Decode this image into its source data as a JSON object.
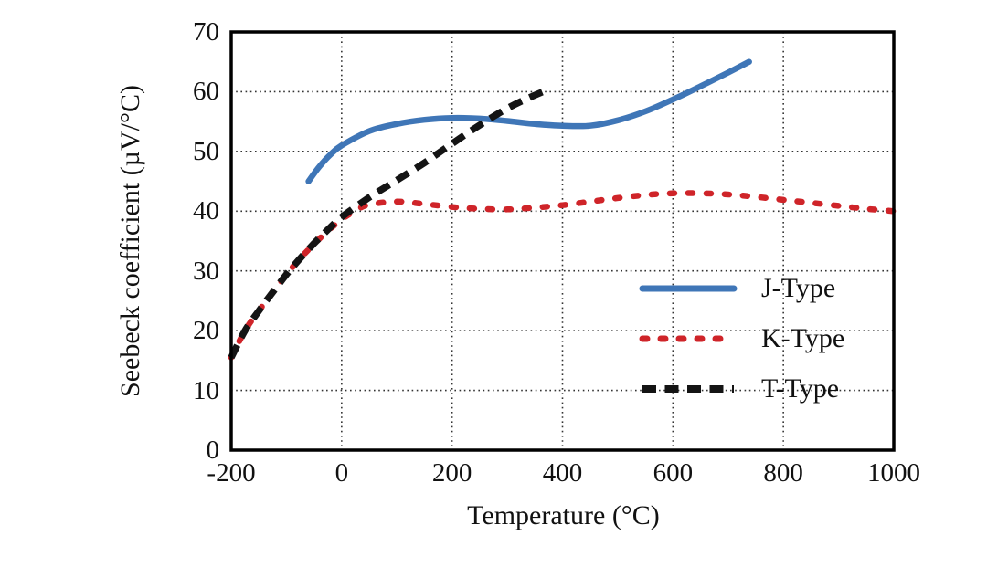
{
  "figure": {
    "background": "#ffffff",
    "frame_color": "#000000",
    "gridline_color": "#333333"
  },
  "chart_data": {
    "type": "line",
    "title": "",
    "xlabel": "Temperature (°C)",
    "ylabel": "Seebeck coefficient (µV/°C)",
    "xlim": [
      -200,
      1000
    ],
    "ylim": [
      0,
      70
    ],
    "xticks": [
      -200,
      0,
      200,
      400,
      600,
      800,
      1000
    ],
    "yticks": [
      0,
      10,
      20,
      30,
      40,
      50,
      60,
      70
    ],
    "grid": "dotted",
    "legend_position": "inside-right",
    "series": [
      {
        "name": "J-Type",
        "style": "solid",
        "color": "#3f76b7",
        "points": [
          [
            -60,
            45
          ],
          [
            -40,
            47.5
          ],
          [
            -20,
            49.5
          ],
          [
            0,
            51
          ],
          [
            50,
            53.4
          ],
          [
            100,
            54.6
          ],
          [
            150,
            55.3
          ],
          [
            200,
            55.6
          ],
          [
            250,
            55.5
          ],
          [
            300,
            55.1
          ],
          [
            350,
            54.6
          ],
          [
            400,
            54.3
          ],
          [
            450,
            54.3
          ],
          [
            500,
            55.2
          ],
          [
            550,
            56.7
          ],
          [
            600,
            58.7
          ],
          [
            650,
            60.9
          ],
          [
            700,
            63.2
          ],
          [
            738,
            65
          ]
        ]
      },
      {
        "name": "K-Type",
        "style": "dotted",
        "color": "#cf2429",
        "points": [
          [
            -200,
            15.5
          ],
          [
            -175,
            20
          ],
          [
            -150,
            23.3
          ],
          [
            -125,
            26.4
          ],
          [
            -100,
            29.4
          ],
          [
            -75,
            32.1
          ],
          [
            -50,
            34.5
          ],
          [
            -25,
            36.7
          ],
          [
            0,
            38.6
          ],
          [
            25,
            40.1
          ],
          [
            50,
            41.1
          ],
          [
            100,
            41.6
          ],
          [
            150,
            41.2
          ],
          [
            200,
            40.7
          ],
          [
            250,
            40.4
          ],
          [
            300,
            40.3
          ],
          [
            350,
            40.6
          ],
          [
            400,
            41.0
          ],
          [
            450,
            41.6
          ],
          [
            500,
            42.2
          ],
          [
            550,
            42.7
          ],
          [
            600,
            43.0
          ],
          [
            650,
            43.0
          ],
          [
            700,
            42.8
          ],
          [
            750,
            42.4
          ],
          [
            800,
            41.9
          ],
          [
            850,
            41.4
          ],
          [
            900,
            40.9
          ],
          [
            950,
            40.4
          ],
          [
            1000,
            40
          ]
        ]
      },
      {
        "name": "T-Type",
        "style": "dashed",
        "color": "#141414",
        "points": [
          [
            -200,
            15.5
          ],
          [
            -175,
            20
          ],
          [
            -150,
            23.3
          ],
          [
            -125,
            26.4
          ],
          [
            -100,
            29.4
          ],
          [
            -75,
            32.1
          ],
          [
            -50,
            34.6
          ],
          [
            -25,
            36.9
          ],
          [
            0,
            39
          ],
          [
            50,
            42.3
          ],
          [
            100,
            45.2
          ],
          [
            150,
            48.1
          ],
          [
            200,
            51.3
          ],
          [
            250,
            54.4
          ],
          [
            300,
            57.2
          ],
          [
            335,
            58.8
          ],
          [
            365,
            60
          ]
        ]
      }
    ]
  }
}
